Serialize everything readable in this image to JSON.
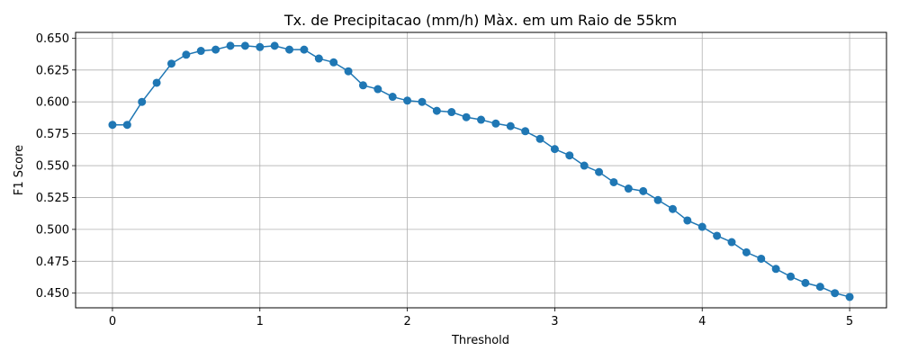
{
  "chart_data": {
    "type": "line",
    "title": "Tx. de Precipitacao (mm/h) Màx. em um Raio de 55km",
    "xlabel": "Threshold",
    "ylabel": "F1 Score",
    "xlim": [
      -0.25,
      5.25
    ],
    "ylim": [
      0.4385,
      0.6545
    ],
    "grid": true,
    "color": "#1f77b4",
    "xticks": [
      0,
      1,
      2,
      3,
      4,
      5
    ],
    "xtick_labels": [
      "0",
      "1",
      "2",
      "3",
      "4",
      "5"
    ],
    "yticks": [
      0.45,
      0.475,
      0.5,
      0.525,
      0.55,
      0.575,
      0.6,
      0.625,
      0.65
    ],
    "ytick_labels": [
      "0.450",
      "0.475",
      "0.500",
      "0.525",
      "0.550",
      "0.575",
      "0.600",
      "0.625",
      "0.650"
    ],
    "series": [
      {
        "x": [
          0.0,
          0.1,
          0.2,
          0.3,
          0.4,
          0.5,
          0.6,
          0.7,
          0.8,
          0.9,
          1.0,
          1.1,
          1.2,
          1.3,
          1.4,
          1.5,
          1.6,
          1.7,
          1.8,
          1.9,
          2.0,
          2.1,
          2.2,
          2.3,
          2.4,
          2.5,
          2.6,
          2.7,
          2.8,
          2.9,
          3.0,
          3.1,
          3.2,
          3.3,
          3.4,
          3.5,
          3.6,
          3.7,
          3.8,
          3.9,
          4.0,
          4.1,
          4.2,
          4.3,
          4.4,
          4.5,
          4.6,
          4.7,
          4.8,
          4.9,
          5.0
        ],
        "values": [
          0.582,
          0.582,
          0.6,
          0.615,
          0.63,
          0.637,
          0.64,
          0.641,
          0.644,
          0.644,
          0.643,
          0.644,
          0.641,
          0.641,
          0.634,
          0.631,
          0.624,
          0.613,
          0.61,
          0.604,
          0.601,
          0.6,
          0.593,
          0.592,
          0.588,
          0.586,
          0.583,
          0.581,
          0.577,
          0.571,
          0.563,
          0.558,
          0.55,
          0.545,
          0.537,
          0.532,
          0.53,
          0.523,
          0.516,
          0.507,
          0.502,
          0.495,
          0.49,
          0.482,
          0.477,
          0.469,
          0.463,
          0.458,
          0.455,
          0.45,
          0.447
        ]
      }
    ]
  }
}
